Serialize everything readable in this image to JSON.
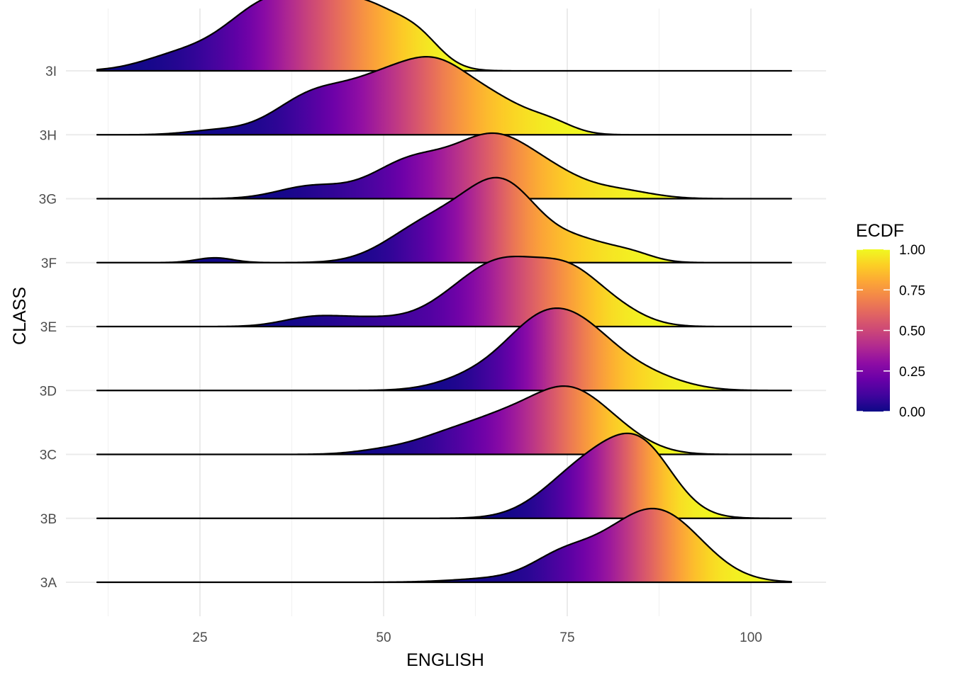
{
  "chart_data": {
    "type": "ridgeline",
    "xlabel": "ENGLISH",
    "ylabel": "CLASS",
    "xlim": [
      10,
      106
    ],
    "x_ticks": [
      "25",
      "50",
      "75",
      "100"
    ],
    "x_tick_values": [
      25,
      50,
      75,
      100
    ],
    "categories": [
      "3A",
      "3B",
      "3C",
      "3D",
      "3E",
      "3F",
      "3G",
      "3H",
      "3I"
    ],
    "x_range": [
      11,
      105.5
    ],
    "series": [
      {
        "name": "3A",
        "peaks": [
          [
            66,
            0.05,
            6
          ],
          [
            74,
            0.22,
            4
          ],
          [
            84,
            0.55,
            6.5
          ],
          [
            89,
            0.45,
            5.5
          ]
        ]
      },
      {
        "name": "3B",
        "peaks": [
          [
            75,
            0.3,
            5
          ],
          [
            82,
            0.7,
            5.5
          ],
          [
            86,
            0.38,
            4
          ]
        ]
      },
      {
        "name": "3C",
        "peaks": [
          [
            50,
            0.05,
            4
          ],
          [
            58,
            0.18,
            4.5
          ],
          [
            66,
            0.38,
            5
          ],
          [
            75,
            0.72,
            5
          ],
          [
            82,
            0.18,
            4.5
          ]
        ]
      },
      {
        "name": "3D",
        "peaks": [
          [
            63,
            0.18,
            5
          ],
          [
            70,
            0.4,
            4.5
          ],
          [
            76,
            0.78,
            5.5
          ],
          [
            86,
            0.15,
            5
          ]
        ]
      },
      {
        "name": "3E",
        "peaks": [
          [
            40,
            0.1,
            4
          ],
          [
            48,
            0.1,
            5
          ],
          [
            61,
            0.38,
            5
          ],
          [
            67,
            0.55,
            4.5
          ],
          [
            75,
            0.65,
            4.5
          ],
          [
            82,
            0.15,
            4
          ]
        ]
      },
      {
        "name": "3F",
        "peaks": [
          [
            27,
            0.06,
            2.5
          ],
          [
            54,
            0.25,
            5
          ],
          [
            62,
            0.55,
            6
          ],
          [
            67,
            0.6,
            4.5
          ],
          [
            77,
            0.25,
            4.5
          ],
          [
            84,
            0.08,
            3
          ]
        ]
      },
      {
        "name": "3G",
        "peaks": [
          [
            40,
            0.15,
            4.5
          ],
          [
            54,
            0.48,
            5.5
          ],
          [
            65,
            0.7,
            5
          ],
          [
            73,
            0.25,
            4.5
          ],
          [
            82,
            0.1,
            4.5
          ]
        ]
      },
      {
        "name": "3H",
        "peaks": [
          [
            27,
            0.05,
            4
          ],
          [
            41,
            0.52,
            5.5
          ],
          [
            50,
            0.48,
            4.5
          ],
          [
            57,
            0.7,
            4.5
          ],
          [
            65,
            0.4,
            5
          ],
          [
            73,
            0.1,
            3
          ]
        ]
      },
      {
        "name": "3I",
        "peaks": [
          [
            22,
            0.18,
            5
          ],
          [
            33,
            0.6,
            5.5
          ],
          [
            41,
            0.6,
            6
          ],
          [
            49,
            0.55,
            5
          ],
          [
            55,
            0.22,
            3
          ]
        ]
      }
    ],
    "grid": true,
    "legend": {
      "title": "ECDF",
      "position": "right",
      "ticks": [
        "1.00",
        "0.75",
        "0.50",
        "0.25",
        "0.00"
      ],
      "tick_values": [
        1.0,
        0.75,
        0.5,
        0.25,
        0.0
      ],
      "colormap": "plasma",
      "colors": [
        "#0d0887",
        "#41049d",
        "#6a00a8",
        "#8f0da4",
        "#b12a90",
        "#cc4778",
        "#e16462",
        "#f2844b",
        "#fca636",
        "#fcce25",
        "#f0f921"
      ]
    }
  }
}
